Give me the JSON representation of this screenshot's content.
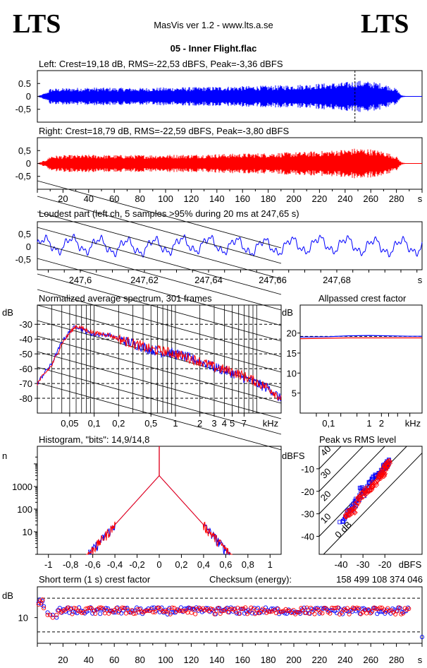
{
  "header": {
    "logo_left": "LTS",
    "logo_right": "LTS",
    "app_title": "MasVis ver 1.2 - www.lts.a.se",
    "file_title": "05 - Inner Flight.flac"
  },
  "colors": {
    "left": "#0000ff",
    "right": "#ff0000",
    "axes": "#000000"
  },
  "chart_data": [
    {
      "id": "left_waveform",
      "type": "area",
      "title": "Left: Crest=19,18 dB, RMS=-22,53 dBFS, Peak=-3,36 dBFS",
      "ylim": [
        -1,
        1
      ],
      "xlim": [
        0,
        300
      ],
      "yticks": [
        "0.5",
        "0",
        "-0,5"
      ],
      "marker_x": 247.65,
      "envelope_x": [
        0,
        3,
        8,
        10,
        20,
        40,
        60,
        80,
        100,
        120,
        140,
        160,
        180,
        200,
        220,
        240,
        250,
        260,
        270,
        280,
        284,
        290,
        300
      ],
      "envelope_y": [
        0.0,
        0.06,
        0.18,
        0.3,
        0.32,
        0.35,
        0.34,
        0.33,
        0.35,
        0.36,
        0.38,
        0.4,
        0.42,
        0.45,
        0.5,
        0.55,
        0.62,
        0.58,
        0.5,
        0.3,
        0.04,
        0.0,
        0.0
      ]
    },
    {
      "id": "right_waveform",
      "type": "area",
      "title": "Right: Crest=18,79 dB, RMS=-22,59 dBFS, Peak=-3,80 dBFS",
      "ylim": [
        -1,
        1
      ],
      "xlim": [
        0,
        300
      ],
      "yticks": [
        "0,5",
        "0",
        "-0,5"
      ],
      "xticks": [
        "20",
        "40",
        "60",
        "80",
        "100",
        "120",
        "140",
        "160",
        "180",
        "200",
        "220",
        "240",
        "260",
        "280"
      ],
      "xunit": "s",
      "envelope_x": [
        0,
        3,
        8,
        10,
        20,
        40,
        60,
        80,
        100,
        120,
        140,
        160,
        180,
        200,
        220,
        240,
        250,
        260,
        270,
        280,
        284,
        290,
        300
      ],
      "envelope_y": [
        0.0,
        0.06,
        0.18,
        0.3,
        0.32,
        0.34,
        0.33,
        0.33,
        0.34,
        0.35,
        0.37,
        0.39,
        0.41,
        0.44,
        0.48,
        0.55,
        0.6,
        0.56,
        0.48,
        0.28,
        0.04,
        0.0,
        0.0
      ]
    },
    {
      "id": "loudest_part",
      "type": "line",
      "title": "Loudest part (left  ch, 5 samples >95% during 20 ms at 247,65 s)",
      "ylim": [
        -1,
        1
      ],
      "xlim": [
        247.5866,
        247.7066
      ],
      "yticks": [
        "0,5",
        "0",
        "-0,5"
      ],
      "xticks": [
        "247,6",
        "247,62",
        "247,64",
        "247,66",
        "247,68"
      ],
      "xtick_values": [
        247.6,
        247.62,
        247.64,
        247.66,
        247.68
      ],
      "xunit": "s"
    },
    {
      "id": "avg_spectrum",
      "type": "line",
      "title": "Normalized average spectrum, 301 frames",
      "ylabel": "dB",
      "xunit": "kHz",
      "yticks": [
        "-30",
        "-40",
        "-50",
        "-60",
        "-70",
        "-80"
      ],
      "ytick_values": [
        -30,
        -40,
        -50,
        -60,
        -70,
        -80
      ],
      "ylim": [
        -90,
        -17
      ],
      "xticks": [
        "0,05",
        "0,1",
        "0,2",
        "0,5",
        "1",
        "2",
        "3",
        "4",
        "5",
        "7"
      ],
      "xtick_values": [
        0.05,
        0.1,
        0.2,
        0.5,
        1,
        2,
        3,
        4,
        5,
        7
      ],
      "xlim": [
        0.02,
        20
      ],
      "series": [
        {
          "color": "#0000ff",
          "freq_khz": [
            0.02,
            0.025,
            0.03,
            0.04,
            0.05,
            0.06,
            0.08,
            0.1,
            0.15,
            0.2,
            0.3,
            0.5,
            0.7,
            1,
            2,
            3,
            5,
            7,
            10,
            15,
            20
          ],
          "db": [
            -70,
            -62,
            -57,
            -42,
            -35,
            -31,
            -35,
            -37,
            -37,
            -40,
            -43,
            -47,
            -49,
            -50,
            -55,
            -59,
            -63,
            -66,
            -70,
            -74,
            -81
          ]
        },
        {
          "color": "#ff0000",
          "freq_khz": [
            0.02,
            0.025,
            0.03,
            0.04,
            0.05,
            0.06,
            0.08,
            0.1,
            0.15,
            0.2,
            0.3,
            0.5,
            0.7,
            1,
            2,
            3,
            5,
            7,
            10,
            15,
            20
          ],
          "db": [
            -70,
            -63,
            -58,
            -43,
            -36,
            -31,
            -34,
            -36,
            -37,
            -40,
            -43,
            -47,
            -48,
            -50,
            -55,
            -59,
            -62,
            -65,
            -69,
            -74,
            -80
          ]
        }
      ]
    },
    {
      "id": "allpassed_crest",
      "type": "line",
      "title": "Allpassed crest factor",
      "ylabel": "dB",
      "xunit": "kHz",
      "yticks": [
        "20",
        "15",
        "10",
        "5"
      ],
      "ytick_values": [
        20,
        15,
        10,
        5
      ],
      "ylim": [
        0,
        27
      ],
      "xticks": [
        "0,1",
        "1",
        "2"
      ],
      "xtick_values": [
        0.1,
        1,
        2
      ],
      "xlim": [
        0.02,
        20
      ],
      "reference_db": 19.18,
      "series": [
        {
          "color": "#0000ff",
          "freq_khz": [
            0.02,
            0.1,
            0.3,
            1,
            3,
            10,
            20
          ],
          "db": [
            19.0,
            19.1,
            19.3,
            19.4,
            19.3,
            19.2,
            19.2
          ]
        },
        {
          "color": "#ff0000",
          "freq_khz": [
            0.02,
            0.1,
            0.3,
            1,
            3,
            10,
            20
          ],
          "db": [
            18.6,
            18.7,
            18.8,
            18.8,
            18.8,
            18.8,
            18.8
          ]
        }
      ]
    },
    {
      "id": "histogram",
      "type": "line",
      "title": "Histogram, \"bits\": 14,9/14,8",
      "ylabel": "n",
      "yscale": "log",
      "yticks": [
        "1000",
        "100",
        "10"
      ],
      "ytick_values": [
        1000,
        100,
        10
      ],
      "ylim": [
        1,
        60000
      ],
      "xticks": [
        "-1",
        "-0,8",
        "-0,6",
        "-0,4",
        "-0,2",
        "0",
        "0,2",
        "0,4",
        "0,6",
        "0,8",
        "1"
      ],
      "xtick_values": [
        -1,
        -0.8,
        -0.6,
        -0.4,
        -0.2,
        0,
        0.2,
        0.4,
        0.6,
        0.8,
        1
      ],
      "xlim": [
        -1.1,
        1.1
      ],
      "series": [
        {
          "color": "#0000ff",
          "halfwidth": 0.64,
          "peak": 3000
        },
        {
          "color": "#ff0000",
          "halfwidth": 0.66,
          "peak": 3000
        }
      ]
    },
    {
      "id": "peak_vs_rms",
      "type": "scatter",
      "title": "Peak vs RMS level",
      "ylabel": "dBFS",
      "xunit": "dBFS",
      "yticks": [
        "-10",
        "-20",
        "-30",
        "-40"
      ],
      "ytick_values": [
        -10,
        -20,
        -30,
        -40
      ],
      "ylim": [
        -48,
        0
      ],
      "xticks": [
        "-40",
        "-30",
        "-20"
      ],
      "xtick_values": [
        -40,
        -30,
        -20
      ],
      "xlim": [
        -50,
        -3
      ],
      "crest_lines": [
        "40",
        "30",
        "20",
        "10",
        "0 dB"
      ],
      "crest_line_values": [
        40,
        30,
        20,
        10,
        0
      ],
      "series": [
        {
          "color": "#0000ff",
          "rms": [
            -40,
            -37,
            -35,
            -33,
            -31,
            -29,
            -27,
            -25,
            -23,
            -21,
            -20,
            -19,
            -18
          ],
          "peak": [
            -34,
            -29,
            -27,
            -25,
            -19,
            -21,
            -17,
            -14,
            -13,
            -11,
            -9,
            -8,
            -7
          ]
        },
        {
          "color": "#ff0000",
          "rms": [
            -38,
            -36,
            -34,
            -32,
            -30,
            -28,
            -26,
            -24,
            -22,
            -21,
            -20,
            -19,
            -18
          ],
          "peak": [
            -32,
            -29,
            -29,
            -23,
            -21,
            -19,
            -18,
            -16,
            -13,
            -12,
            -10,
            -8,
            -7
          ]
        }
      ]
    },
    {
      "id": "short_term_crest",
      "type": "scatter",
      "title": "Short term (1 s) crest factor",
      "ylabel": "dB",
      "yscale": "log",
      "yticks": [
        "10"
      ],
      "ytick_values": [
        10
      ],
      "dashed_levels": [
        20,
        6
      ],
      "ylim": [
        4,
        30
      ],
      "xlim": [
        0,
        300
      ],
      "xticks": [
        "20",
        "40",
        "60",
        "80",
        "100",
        "120",
        "140",
        "160",
        "180",
        "200",
        "220",
        "240",
        "260",
        "280"
      ],
      "xtick_values": [
        20,
        40,
        60,
        80,
        100,
        120,
        140,
        160,
        180,
        200,
        220,
        240,
        260,
        280
      ],
      "xunit": "s",
      "typical_crest_db": 12.5,
      "series": [
        {
          "color": "#0000ff",
          "x": [
            1,
            2,
            3,
            4,
            5,
            8,
            10,
            12,
            15,
            300
          ],
          "y": [
            17,
            19,
            16,
            18,
            15,
            12,
            11,
            11,
            10,
            5
          ]
        },
        {
          "color": "#ff0000",
          "x": [
            1,
            2,
            3,
            4,
            5,
            8,
            10,
            12,
            15
          ],
          "y": [
            16,
            18,
            17,
            19,
            14,
            11,
            11,
            10,
            11
          ]
        }
      ]
    }
  ],
  "checksum": {
    "label": "Checksum (energy):",
    "value": "158 499 108 374 046"
  }
}
